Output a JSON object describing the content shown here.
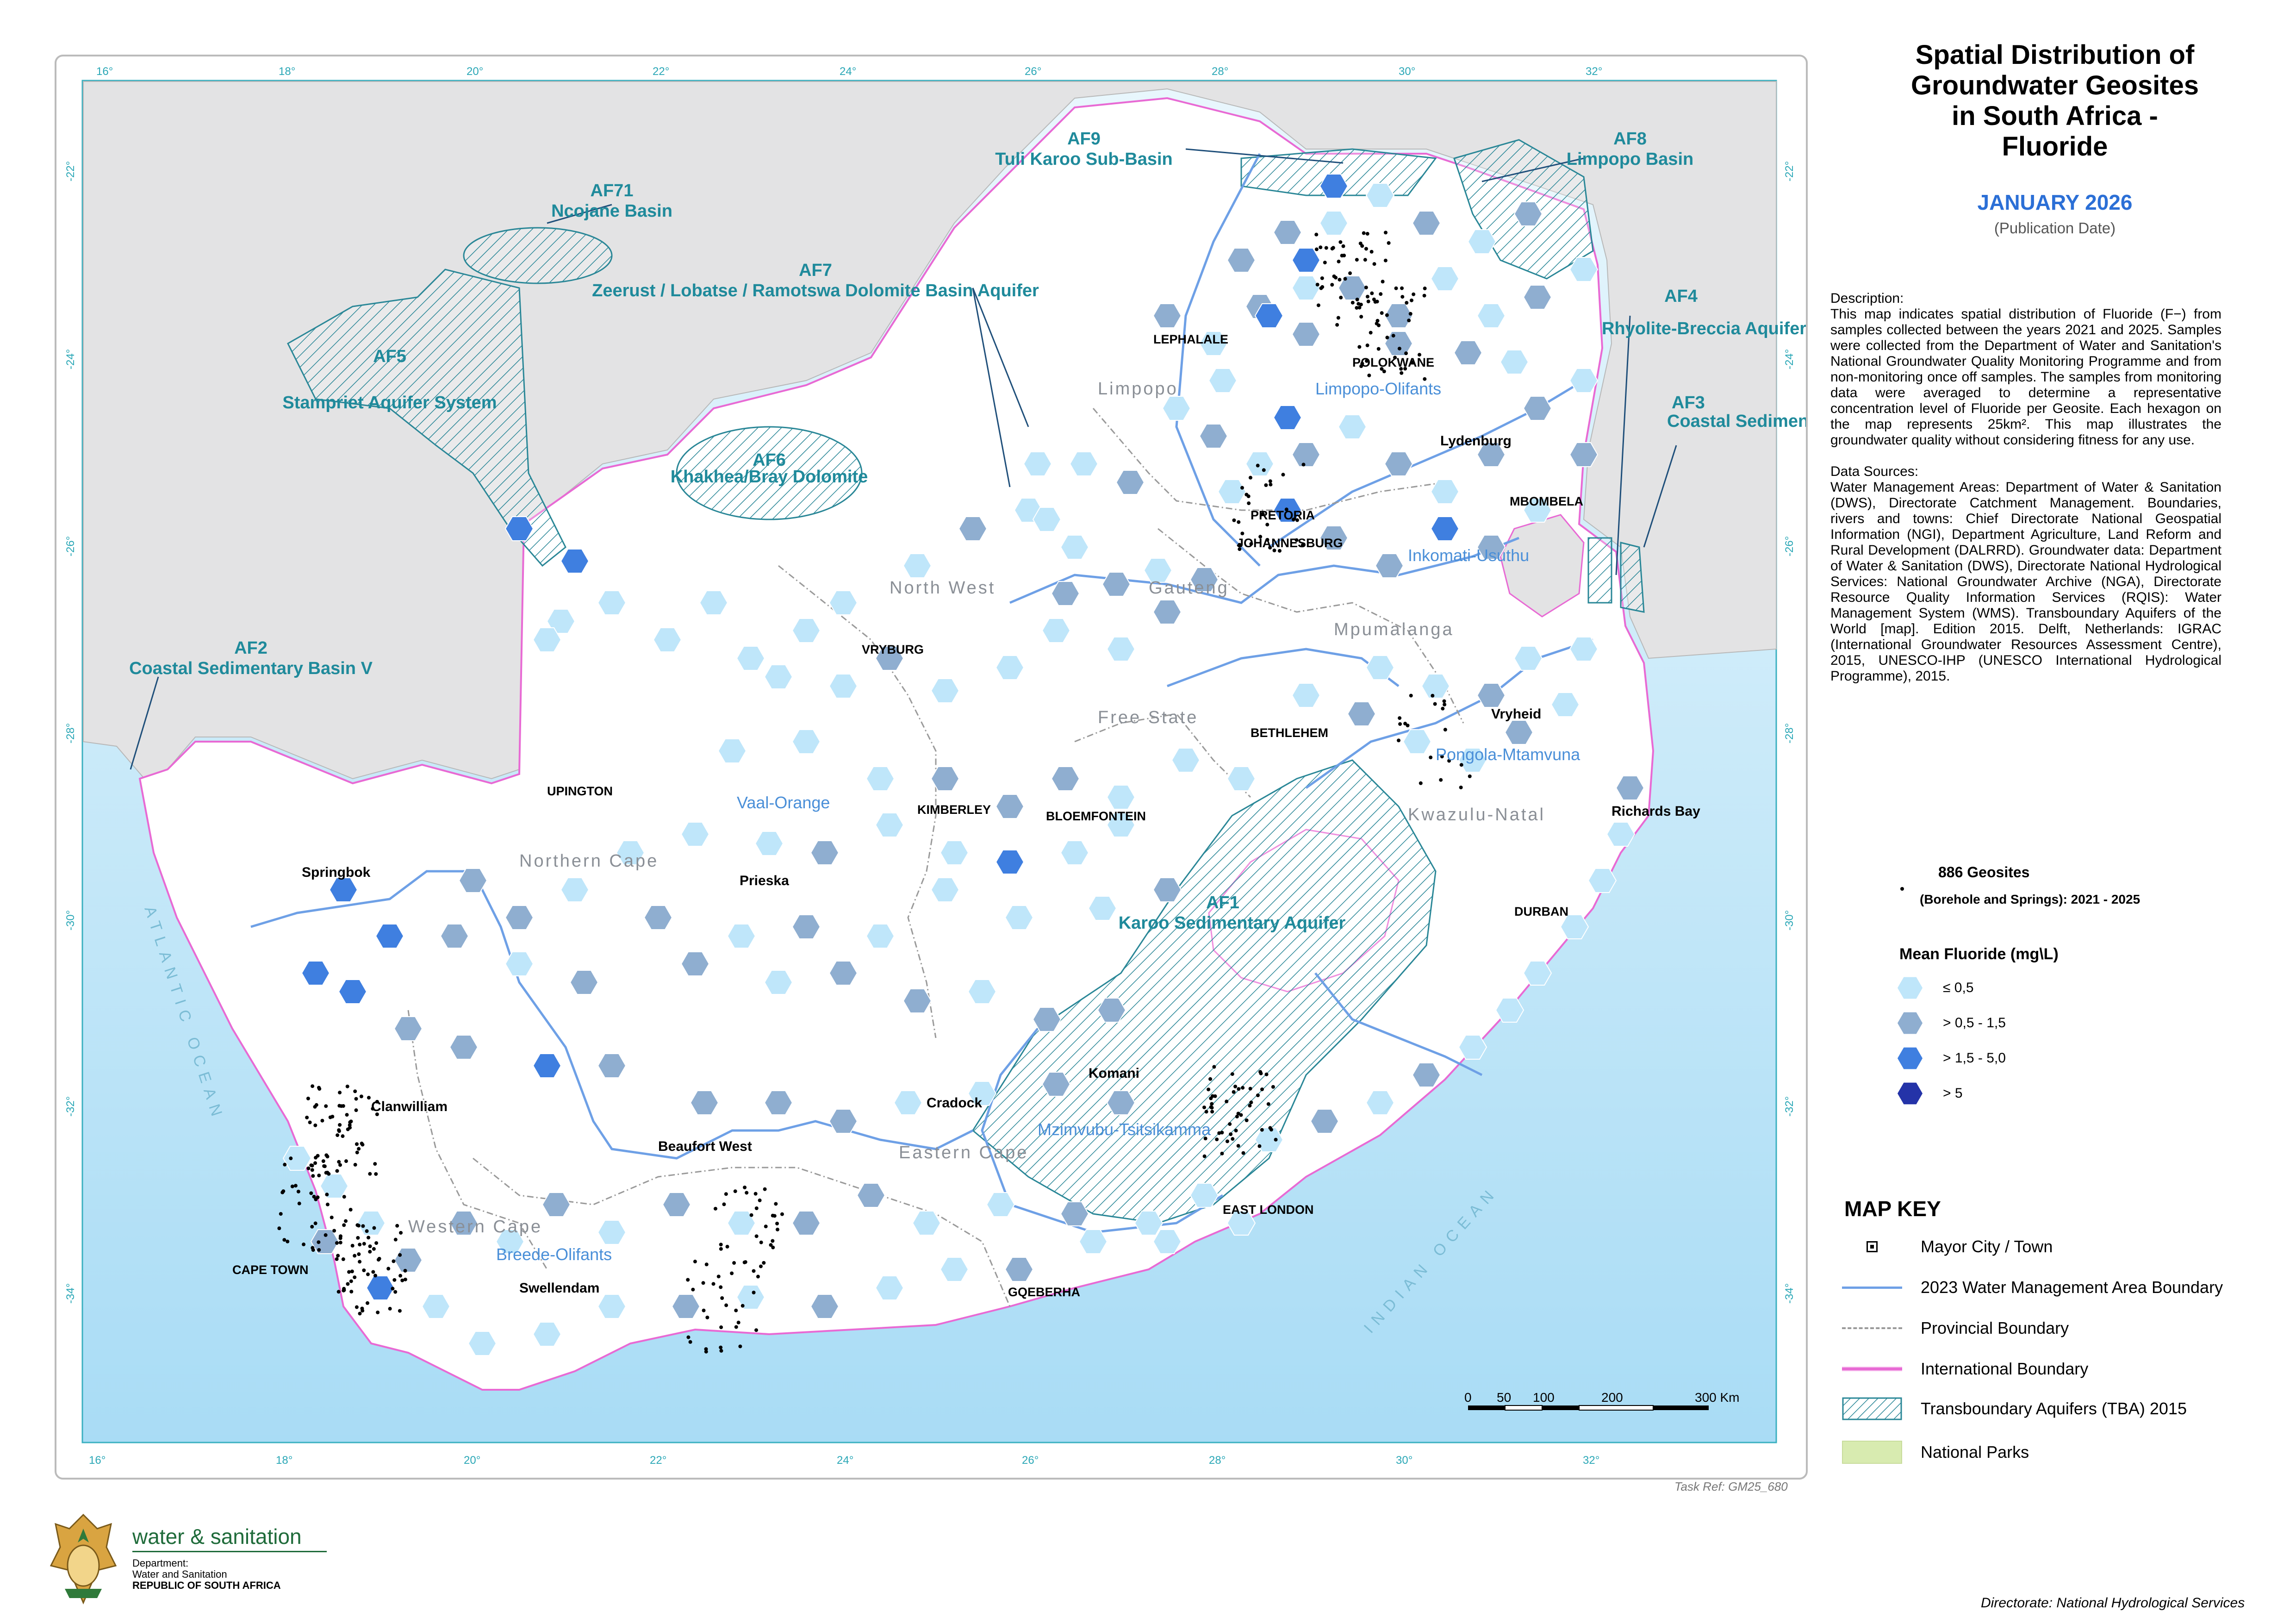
{
  "title": "Spatial Distribution of Groundwater Geosites in South Africa - Fluoride",
  "title_lines": [
    "Spatial Distribution of",
    "Groundwater Geosites",
    "in South Africa -",
    "Fluoride"
  ],
  "publication": {
    "date": "JANUARY 2026",
    "note": "(Publication Date)"
  },
  "description": {
    "heading": "Description:",
    "body": "This map indicates spatial distribution of Fluoride (F−) from samples collected between the years 2021 and 2025. Samples were collected from the Department of Water and Sanitation's National Groundwater Quality Monitoring Programme and from non-monitoring once off samples. The samples from monitoring data were averaged to determine a representative concentration level of Fluoride per Geosite. Each hexagon on the map represents 25km². This map illustrates the groundwater quality without considering fitness for any use.",
    "sources_heading": "Data Sources:",
    "sources": "Water Management Areas: Department of Water & Sanitation (DWS), Directorate Catchment Management. Boundaries, rivers and towns: Chief Directorate National Geospatial Information (NGI), Department Agriculture, Land Reform and Rural Development (DALRRD). Groundwater data: Department of Water & Sanitation (DWS), Directorate National Hydrological Services: National Groundwater Archive (NGA), Directorate Resource Quality Information Services (RQIS): Water Management System (WMS). Transboundary Aquifers of the World [map]. Edition 2015. Delft, Netherlands: IGRAC (International Groundwater Resources Assessment Centre), 2015, UNESCO-IHP (UNESCO International Hydrological Programme), 2015."
  },
  "geosites": {
    "count_label": "886 Geosites",
    "period_label": "(Borehole and Springs): 2021 - 2025"
  },
  "fluoride_legend": {
    "title": "Mean Fluoride (mg\\L)",
    "classes": [
      {
        "label": "≤ 0,5",
        "color": "#bfe6fa"
      },
      {
        "label": "> 0,5 - 1,5",
        "color": "#8faed0"
      },
      {
        "label": "> 1,5 - 5,0",
        "color": "#3f7fe0"
      },
      {
        "label": "> 5",
        "color": "#2433a8"
      }
    ]
  },
  "map_key": {
    "title": "MAP KEY",
    "items": [
      {
        "label": "Mayor City / Town",
        "icon": "city-square-icon"
      },
      {
        "label": "2023 Water Management Area Boundary",
        "icon": "wma-line-icon",
        "color": "#6ea0e6"
      },
      {
        "label": "Provincial Boundary",
        "icon": "provincial-line-icon",
        "color": "#9a9a9a"
      },
      {
        "label": "International Boundary",
        "icon": "international-line-icon",
        "color": "#e86ad4"
      },
      {
        "label": "Transboundary Aquifers (TBA) 2015",
        "icon": "hatch-icon"
      },
      {
        "label": "National Parks",
        "icon": "park-icon",
        "color": "#d8ebb0"
      }
    ]
  },
  "scale_bar": {
    "labels": [
      "0",
      "50",
      "100",
      "200",
      "300 Km"
    ]
  },
  "graticule": {
    "longitudes": [
      "16°",
      "18°",
      "20°",
      "22°",
      "24°",
      "26°",
      "28°",
      "30°",
      "32°"
    ],
    "latitudes": [
      "-22°",
      "-24°",
      "-26°",
      "-28°",
      "-30°",
      "-32°",
      "-34°"
    ]
  },
  "aquifers": [
    {
      "code": "AF71",
      "name": "Ncojane Basin"
    },
    {
      "code": "AF7",
      "name": "Zeerust / Lobatse / Ramotswa Dolomite Basin Aquifer"
    },
    {
      "code": "AF9",
      "name": "Tuli Karoo Sub-Basin"
    },
    {
      "code": "AF8",
      "name": "Limpopo Basin"
    },
    {
      "code": "AF5",
      "name": "Stampriet Aquifer System"
    },
    {
      "code": "AF6",
      "name": "Khakhea/Bray Dolomite"
    },
    {
      "code": "AF2",
      "name": "Coastal Sedimentary Basin V"
    },
    {
      "code": "AF4",
      "name": "Rhyolite-Breccia Aquifer"
    },
    {
      "code": "AF3",
      "name": "Coastal Sedimentary Basin VI / Coastal Plain Sedimentary Basin Aquifer"
    },
    {
      "code": "AF1",
      "name": "Karoo Sedimentary Aquifer"
    }
  ],
  "wma_labels": [
    "Limpopo-Olifants",
    "Inkomati-Usuthu",
    "Pongola-Mtamvuna",
    "Vaal-Orange",
    "Mzimvubu-Tsitsikamma",
    "Breede-Olifants"
  ],
  "provinces": [
    "Limpopo",
    "North West",
    "Gauteng",
    "Mpumalanga",
    "Free State",
    "Kwazulu-Natal",
    "Northern Cape",
    "Eastern Cape",
    "Western Cape"
  ],
  "towns": [
    "LEPHALALE",
    "POLOKWANE",
    "Lydenburg",
    "MBOMBELA",
    "PRETORIA",
    "JOHANNESBURG",
    "VRYBURG",
    "Vryheid",
    "BETHLEHEM",
    "Richards Bay",
    "UPINGTON",
    "KIMBERLEY",
    "BLOEMFONTEIN",
    "Springbok",
    "Prieska",
    "DURBAN",
    "Komani",
    "Cradock",
    "Clanwilliam",
    "Beaufort West",
    "EAST LONDON",
    "CAPE TOWN",
    "Swellendam",
    "GQEBERHA"
  ],
  "oceans": [
    "ATLANTIC OCEAN",
    "INDIAN OCEAN"
  ],
  "task_ref": "Task Ref: GM25_680",
  "logo": {
    "line1": "water & sanitation",
    "line2": "Department:",
    "line3": "Water and Sanitation",
    "line4": "REPUBLIC OF SOUTH AFRICA"
  },
  "directorate": "Directorate: National Hydrological Services"
}
